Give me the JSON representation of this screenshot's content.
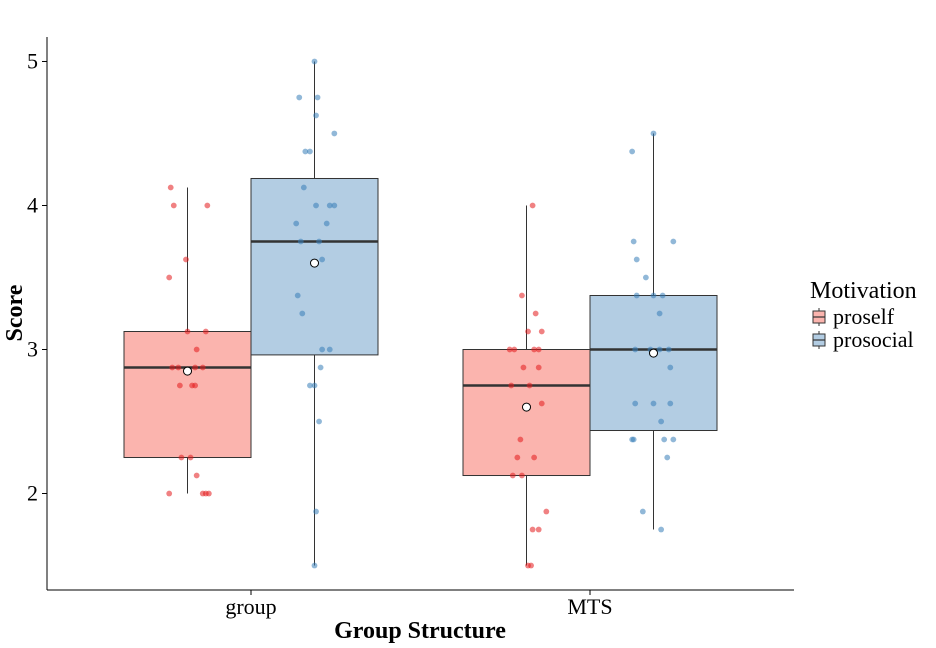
{
  "chart_data": {
    "type": "boxplot",
    "xlabel": "Group Structure",
    "ylabel": "Score",
    "categories": [
      "group",
      "MTS"
    ],
    "ylim": [
      1.33,
      5.17
    ],
    "yticks": [
      2,
      3,
      4,
      5
    ],
    "grid": false,
    "legend": {
      "title": "Motivation",
      "placement": "right",
      "entries": [
        {
          "label": "proself",
          "fill": "#fbb4ae",
          "point": "#e41a1c"
        },
        {
          "label": "prosocial",
          "fill": "#b3cde3",
          "point": "#377eb8"
        }
      ]
    },
    "series": [
      {
        "name": "proself",
        "fill": "#fbb4ae",
        "point_color": "#e41a1c",
        "boxes": [
          {
            "category": "group",
            "min": 2.0,
            "q1": 2.25,
            "median": 2.875,
            "q3": 3.125,
            "max": 4.125,
            "mean": 2.85,
            "points": [
              4.125,
              4.0,
              4.0,
              3.625,
              3.5,
              3.125,
              3.125,
              3.0,
              2.875,
              2.875,
              2.875,
              2.875,
              2.75,
              2.75,
              2.75,
              2.25,
              2.25,
              2.125,
              2.0,
              2.0,
              2.0,
              2.0
            ],
            "jitter": [
              -0.11,
              -0.09,
              0.13,
              -0.01,
              -0.12,
              0.0,
              0.12,
              0.06,
              -0.1,
              -0.06,
              0.05,
              0.1,
              -0.05,
              0.03,
              0.05,
              -0.04,
              0.02,
              0.06,
              -0.12,
              0.1,
              0.12,
              0.14
            ]
          },
          {
            "category": "MTS",
            "min": 1.5,
            "q1": 2.125,
            "median": 2.75,
            "q3": 3.0,
            "max": 4.0,
            "mean": 2.6,
            "points": [
              4.0,
              3.375,
              3.25,
              3.125,
              3.125,
              3.0,
              3.0,
              3.0,
              3.0,
              2.875,
              2.875,
              2.75,
              2.75,
              2.625,
              2.375,
              2.25,
              2.25,
              2.125,
              2.125,
              1.875,
              1.75,
              1.75,
              1.5,
              1.5
            ],
            "jitter": [
              0.04,
              -0.03,
              0.06,
              0.01,
              0.1,
              -0.11,
              -0.08,
              0.05,
              0.08,
              -0.02,
              0.08,
              -0.1,
              0.02,
              0.1,
              -0.04,
              -0.06,
              0.05,
              -0.09,
              -0.03,
              0.13,
              0.04,
              0.08,
              0.01,
              0.03
            ]
          }
        ]
      },
      {
        "name": "prosocial",
        "fill": "#b3cde3",
        "point_color": "#377eb8",
        "boxes": [
          {
            "category": "group",
            "min": 1.5,
            "q1": 2.9625,
            "median": 3.75,
            "q3": 4.1875,
            "max": 5.0,
            "mean": 3.6,
            "points": [
              5.0,
              4.75,
              4.75,
              4.625,
              4.5,
              4.375,
              4.375,
              4.125,
              4.0,
              4.0,
              4.0,
              3.875,
              3.875,
              3.75,
              3.75,
              3.625,
              3.375,
              3.25,
              3.0,
              3.0,
              2.875,
              2.75,
              2.75,
              2.5,
              1.875,
              1.5
            ],
            "jitter": [
              0.0,
              -0.1,
              0.02,
              0.01,
              0.13,
              -0.06,
              -0.03,
              -0.07,
              0.01,
              0.1,
              0.13,
              -0.12,
              0.08,
              -0.09,
              0.03,
              0.05,
              -0.11,
              -0.08,
              0.05,
              0.1,
              0.04,
              -0.03,
              0.0,
              0.03,
              0.01,
              0.0
            ]
          },
          {
            "category": "MTS",
            "min": 1.75,
            "q1": 2.4375,
            "median": 3.0,
            "q3": 3.375,
            "max": 4.5,
            "mean": 2.975,
            "points": [
              4.5,
              4.375,
              3.75,
              3.75,
              3.625,
              3.5,
              3.375,
              3.375,
              3.375,
              3.25,
              3.0,
              3.0,
              3.0,
              3.0,
              2.875,
              2.625,
              2.625,
              2.625,
              2.5,
              2.375,
              2.375,
              2.375,
              2.375,
              2.25,
              1.875,
              1.75
            ],
            "jitter": [
              0.0,
              -0.14,
              -0.13,
              0.13,
              -0.11,
              -0.05,
              -0.11,
              0.0,
              0.06,
              0.04,
              -0.12,
              -0.02,
              0.04,
              0.1,
              0.11,
              -0.12,
              0.0,
              0.11,
              0.05,
              -0.14,
              -0.13,
              0.07,
              0.13,
              0.09,
              -0.07,
              0.05
            ]
          }
        ]
      }
    ]
  }
}
